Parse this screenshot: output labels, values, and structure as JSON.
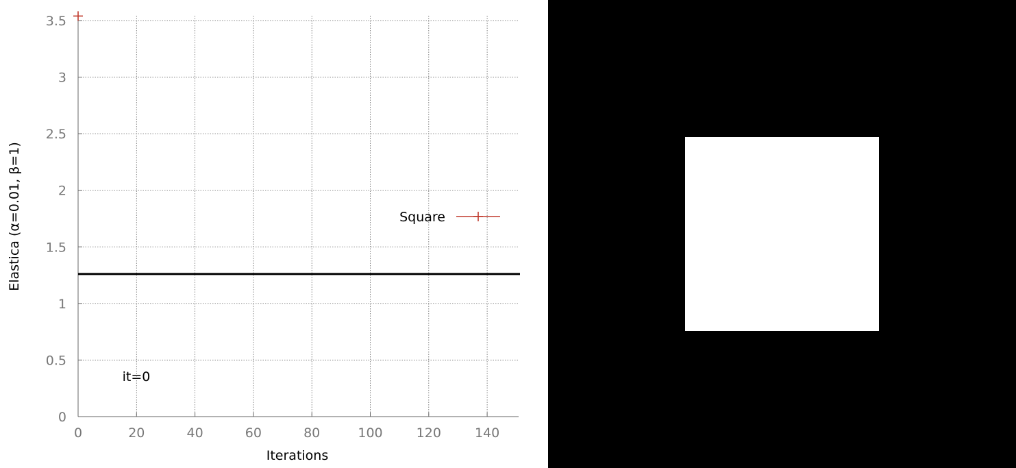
{
  "chart_data": {
    "type": "line",
    "xlabel": "Iterations",
    "ylabel": "Elastica (α=0.01, β=1)",
    "xlim": [
      0,
      150
    ],
    "ylim": [
      0,
      3.5
    ],
    "xticks": [
      0,
      20,
      40,
      60,
      80,
      100,
      120,
      140
    ],
    "yticks": [
      "0",
      "0.5",
      "1",
      "1.5",
      "2",
      "2.5",
      "3",
      "3.5"
    ],
    "grid": true,
    "legend_position": "right",
    "series": [
      {
        "name": "Square",
        "color": "#c0392b",
        "marker": "plus",
        "x": [
          0
        ],
        "y": [
          3.54
        ]
      }
    ],
    "reference_line": {
      "y": 1.26,
      "color": "#000000"
    },
    "annotation": "it=0"
  },
  "image_panel": {
    "background_color": "#000000",
    "shape_color": "#ffffff",
    "shape": "square"
  }
}
